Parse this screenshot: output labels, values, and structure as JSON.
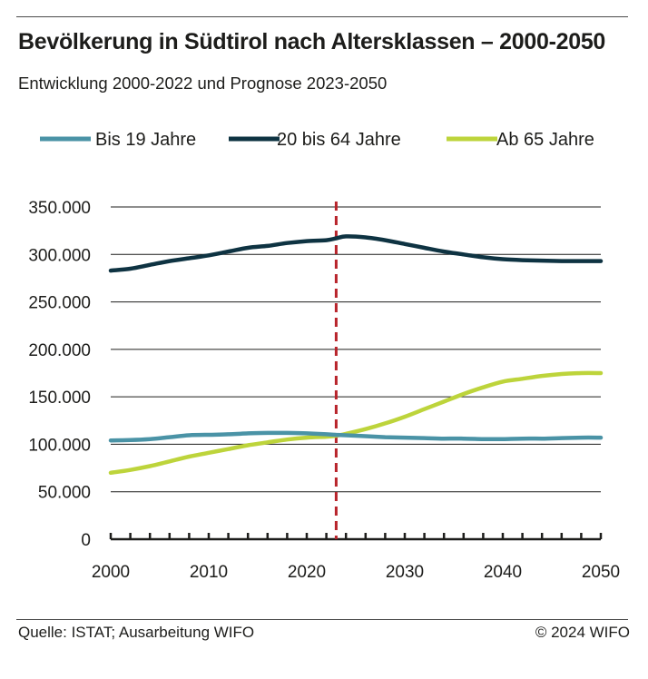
{
  "chart_data": {
    "type": "line",
    "title": "Bevölkerung in Südtirol nach Altersklassen – 2000-2050",
    "subtitle": "Entwicklung 2000-2022 und Prognose 2023-2050",
    "xlim": [
      2000,
      2050
    ],
    "ylim": [
      0,
      350000
    ],
    "x_ticks": [
      "2000",
      "2010",
      "2020",
      "2030",
      "2040",
      "2050"
    ],
    "y_ticks": [
      "0",
      "50.000",
      "100.000",
      "150.000",
      "200.000",
      "250.000",
      "300.000",
      "350.000"
    ],
    "legend_position": "top",
    "grid": "horizontal",
    "forecast_start": 2023,
    "x": [
      2000,
      2002,
      2004,
      2006,
      2008,
      2010,
      2012,
      2014,
      2016,
      2018,
      2020,
      2022,
      2023,
      2024,
      2026,
      2028,
      2030,
      2032,
      2034,
      2036,
      2038,
      2040,
      2042,
      2044,
      2046,
      2048,
      2050
    ],
    "series": [
      {
        "name": "Bis 19 Jahre",
        "color": "#4a93a6",
        "values": [
          104000,
          104500,
          105500,
          107500,
          109500,
          110000,
          110500,
          111500,
          112000,
          112000,
          111500,
          110500,
          110000,
          109500,
          108500,
          107500,
          107000,
          106500,
          106000,
          106000,
          105500,
          105500,
          106000,
          106000,
          106500,
          107000,
          107000
        ]
      },
      {
        "name": "20 bis 64 Jahre",
        "color": "#0e3342",
        "values": [
          283000,
          285000,
          289000,
          293000,
          296000,
          299000,
          303000,
          307000,
          309000,
          312000,
          314000,
          315000,
          317000,
          319000,
          318000,
          315000,
          311000,
          307000,
          303000,
          300000,
          297000,
          295000,
          294000,
          293500,
          293000,
          293000,
          293000
        ]
      },
      {
        "name": "Ab 65 Jahre",
        "color": "#bdd43b",
        "values": [
          70000,
          73000,
          77000,
          82000,
          87000,
          91000,
          95000,
          99000,
          102000,
          105000,
          107000,
          108000,
          109000,
          111000,
          116000,
          122000,
          129000,
          137000,
          145000,
          153000,
          160000,
          166000,
          169000,
          172000,
          174000,
          175000,
          175000
        ]
      }
    ]
  },
  "footer": {
    "source": "Quelle: ISTAT; Ausarbeitung WIFO",
    "copyright": "© 2024 WIFO"
  }
}
